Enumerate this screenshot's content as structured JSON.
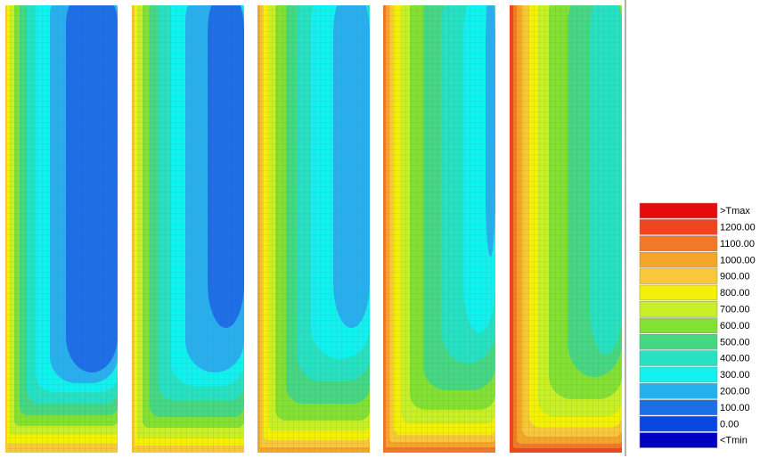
{
  "legend": {
    "items": [
      {
        "label": ">Tmax",
        "color": "#e60a0a"
      },
      {
        "label": "1200.00",
        "color": "#f0461e"
      },
      {
        "label": "1100.00",
        "color": "#f07828"
      },
      {
        "label": "1000.00",
        "color": "#f5a52a"
      },
      {
        "label": "900.00",
        "color": "#f8c83a"
      },
      {
        "label": "800.00",
        "color": "#f5f00a"
      },
      {
        "label": "700.00",
        "color": "#c8f028"
      },
      {
        "label": "600.00",
        "color": "#82e132"
      },
      {
        "label": "500.00",
        "color": "#46d782"
      },
      {
        "label": "400.00",
        "color": "#28e1c3"
      },
      {
        "label": "300.00",
        "color": "#14f0f0"
      },
      {
        "label": "200.00",
        "color": "#28aff0"
      },
      {
        "label": "100.00",
        "color": "#1c6ee6"
      },
      {
        "label": "0.00",
        "color": "#0a46e1"
      },
      {
        "label": "<Tmin",
        "color": "#0000c3"
      }
    ]
  }
}
